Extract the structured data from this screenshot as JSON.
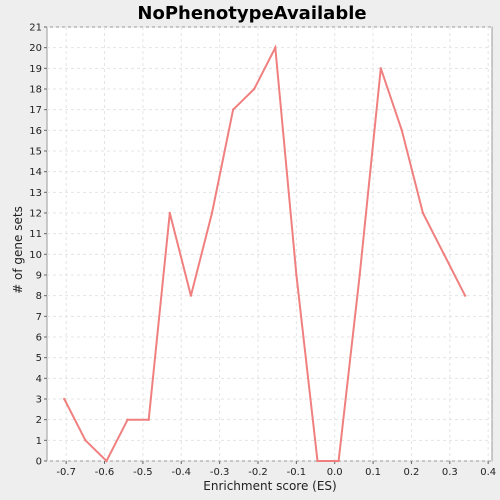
{
  "chart_data": {
    "type": "line",
    "title": "NoPhenotypeAvailable",
    "xlabel": "Enrichment score (ES)",
    "ylabel": "# of gene sets",
    "xlim": [
      -0.75,
      0.41
    ],
    "ylim": [
      0,
      21
    ],
    "x_ticks": [
      -0.7,
      -0.6,
      -0.5,
      -0.4,
      -0.3,
      -0.2,
      -0.1,
      0.0,
      0.1,
      0.2,
      0.3,
      0.4
    ],
    "x_tick_labels": [
      "-0.7",
      "-0.6",
      "-0.5",
      "-0.4",
      "-0.3",
      "-0.2",
      "-0.1",
      "0.0",
      "0.1",
      "0.2",
      "0.3",
      "0.4"
    ],
    "y_ticks": [
      0,
      1,
      2,
      3,
      4,
      5,
      6,
      7,
      8,
      9,
      10,
      11,
      12,
      13,
      14,
      15,
      16,
      17,
      18,
      19,
      20,
      21
    ],
    "y_tick_labels": [
      "0",
      "1",
      "2",
      "3",
      "4",
      "5",
      "6",
      "7",
      "8",
      "9",
      "10",
      "11",
      "12",
      "13",
      "14",
      "15",
      "16",
      "17",
      "18",
      "19",
      "20",
      "21"
    ],
    "grid": true,
    "legend": "none",
    "series": [
      {
        "color": "#f08080",
        "x": [
          -0.705,
          -0.65,
          -0.595,
          -0.54,
          -0.485,
          -0.43,
          -0.375,
          -0.32,
          -0.265,
          -0.21,
          -0.155,
          -0.1,
          -0.045,
          0.01,
          0.065,
          0.12,
          0.175,
          0.23,
          0.285,
          0.34
        ],
        "y": [
          3,
          1,
          0,
          2,
          2,
          12,
          8,
          12,
          17,
          18,
          20,
          9,
          0,
          0,
          9,
          19,
          16,
          12,
          10,
          8
        ]
      }
    ]
  }
}
